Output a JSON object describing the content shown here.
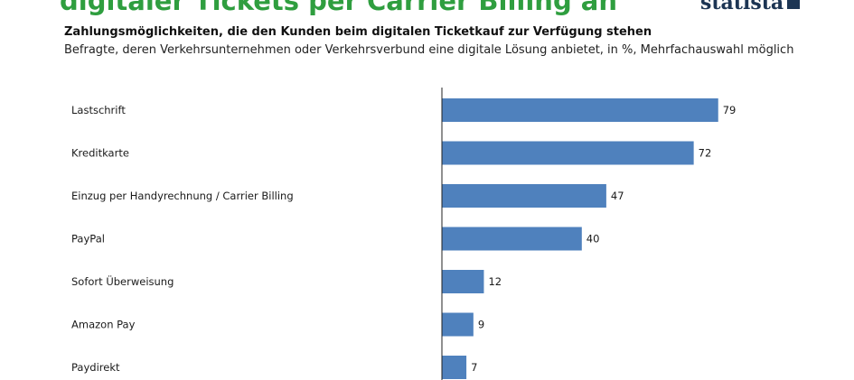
{
  "header": {
    "headline": "digitaler Tickets per Carrier Billing an",
    "brand": "statista"
  },
  "chart_data": {
    "type": "bar",
    "orientation": "horizontal",
    "title": "Zahlungsmöglichkeiten, die den Kunden beim digitalen Ticketkauf zur Verfügung stehen",
    "subtitle": "Befragte, deren Verkehrsunternehmen oder Verkehrsverbund eine digitale Lösung anbietet, in %, Mehrfachauswahl möglich",
    "categories": [
      "Lastschrift",
      "Kreditkarte",
      "Einzug per Handyrechnung  / Carrier Billing",
      "PayPal",
      "Sofort Überweisung",
      "Amazon Pay",
      "Paydirekt"
    ],
    "values": [
      79,
      72,
      47,
      40,
      12,
      9,
      7
    ],
    "xlim": [
      0,
      100
    ],
    "unit": "%",
    "bar_color": "#4f81bd",
    "grid": false,
    "legend": "none"
  }
}
